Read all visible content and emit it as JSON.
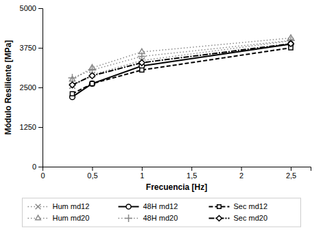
{
  "chart_data": {
    "type": "line",
    "xlabel": "Frecuencia  [Hz]",
    "ylabel": "Módulo Resiliente [MPa]",
    "x": [
      0.3,
      0.5,
      1.0,
      2.5
    ],
    "series": [
      {
        "name": "Hum md12",
        "color": "#888888",
        "line_style": "dotted",
        "marker": "x",
        "values": [
          2550,
          2900,
          3350,
          3970
        ]
      },
      {
        "name": "48H md12",
        "color": "#000000",
        "line_style": "solid",
        "marker": "circle",
        "values": [
          2200,
          2620,
          3180,
          3870
        ]
      },
      {
        "name": "Sec md12",
        "color": "#000000",
        "line_style": "dashed",
        "marker": "square",
        "values": [
          2300,
          2620,
          3050,
          3750
        ]
      },
      {
        "name": "Hum md20",
        "color": "#888888",
        "line_style": "dotted",
        "marker": "triangle",
        "values": [
          2750,
          3120,
          3620,
          4060
        ]
      },
      {
        "name": "48H md20",
        "color": "#888888",
        "line_style": "dotted",
        "marker": "plus",
        "values": [
          2800,
          3050,
          3480,
          3980
        ]
      },
      {
        "name": "Sec md20",
        "color": "#000000",
        "line_style": "dashdot",
        "marker": "diamond",
        "values": [
          2580,
          2870,
          3280,
          3880
        ]
      }
    ],
    "xlim": [
      0,
      2.7
    ],
    "ylim": [
      0,
      5000
    ],
    "xticks": [
      0,
      {
        "value": 0.5,
        "label": "0,5"
      },
      1,
      {
        "value": 1.5,
        "label": "1,5"
      },
      2,
      {
        "value": 2.5,
        "label": "2,5"
      }
    ],
    "yticks": [
      0,
      1250,
      2500,
      3750,
      5000
    ],
    "grid": false,
    "legend": "bottom"
  }
}
